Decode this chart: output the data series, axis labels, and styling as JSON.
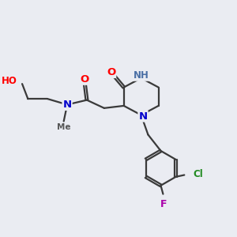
{
  "background_color": "#eaecf2",
  "bond_color": "#3a3a3a",
  "atom_colors": {
    "O": "#ff0000",
    "N": "#0000cc",
    "NH": "#4a6fa5",
    "H": "#666666",
    "Cl": "#228b22",
    "F": "#aa00aa",
    "C": "#3a3a3a"
  },
  "lw": 1.6
}
